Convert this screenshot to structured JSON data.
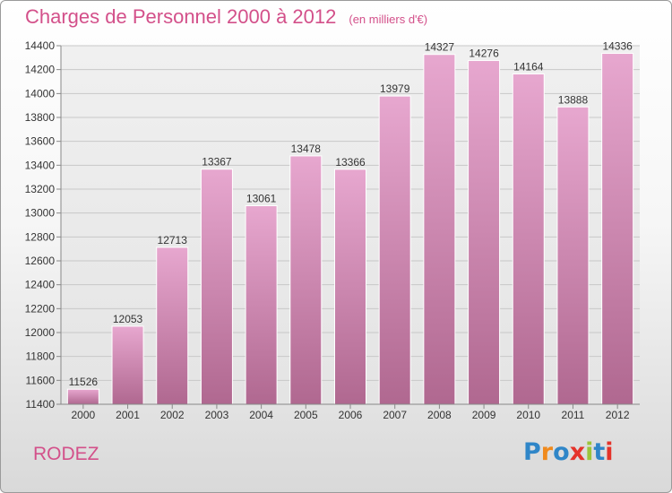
{
  "header": {
    "title": "Charges de Personnel 2000 à 2012",
    "subtitle": "(en milliers d'€)"
  },
  "footer": {
    "commune": "RODEZ",
    "logo_text": "Proxiti"
  },
  "colors": {
    "title": "#d3508a",
    "bar_top": "#e7a7cf",
    "bar_bottom": "#b06890",
    "logo_letters": [
      "#2f86c8",
      "#f08a1d",
      "#2f86c8",
      "#e5332a",
      "#9bc43a",
      "#2f86c8",
      "#e5332a"
    ]
  },
  "chart_data": {
    "type": "bar",
    "categories": [
      "2000",
      "2001",
      "2002",
      "2003",
      "2004",
      "2005",
      "2006",
      "2007",
      "2008",
      "2009",
      "2010",
      "2011",
      "2012"
    ],
    "values": [
      11526,
      12053,
      12713,
      13367,
      13061,
      13478,
      13366,
      13979,
      14327,
      14276,
      14164,
      13888,
      14336
    ],
    "ylim": [
      11400,
      14400
    ],
    "yticks": [
      11400,
      11600,
      11800,
      12000,
      12200,
      12400,
      12600,
      12800,
      13000,
      13200,
      13400,
      13600,
      13800,
      14000,
      14200,
      14400
    ],
    "grid": true,
    "data_labels": true
  }
}
